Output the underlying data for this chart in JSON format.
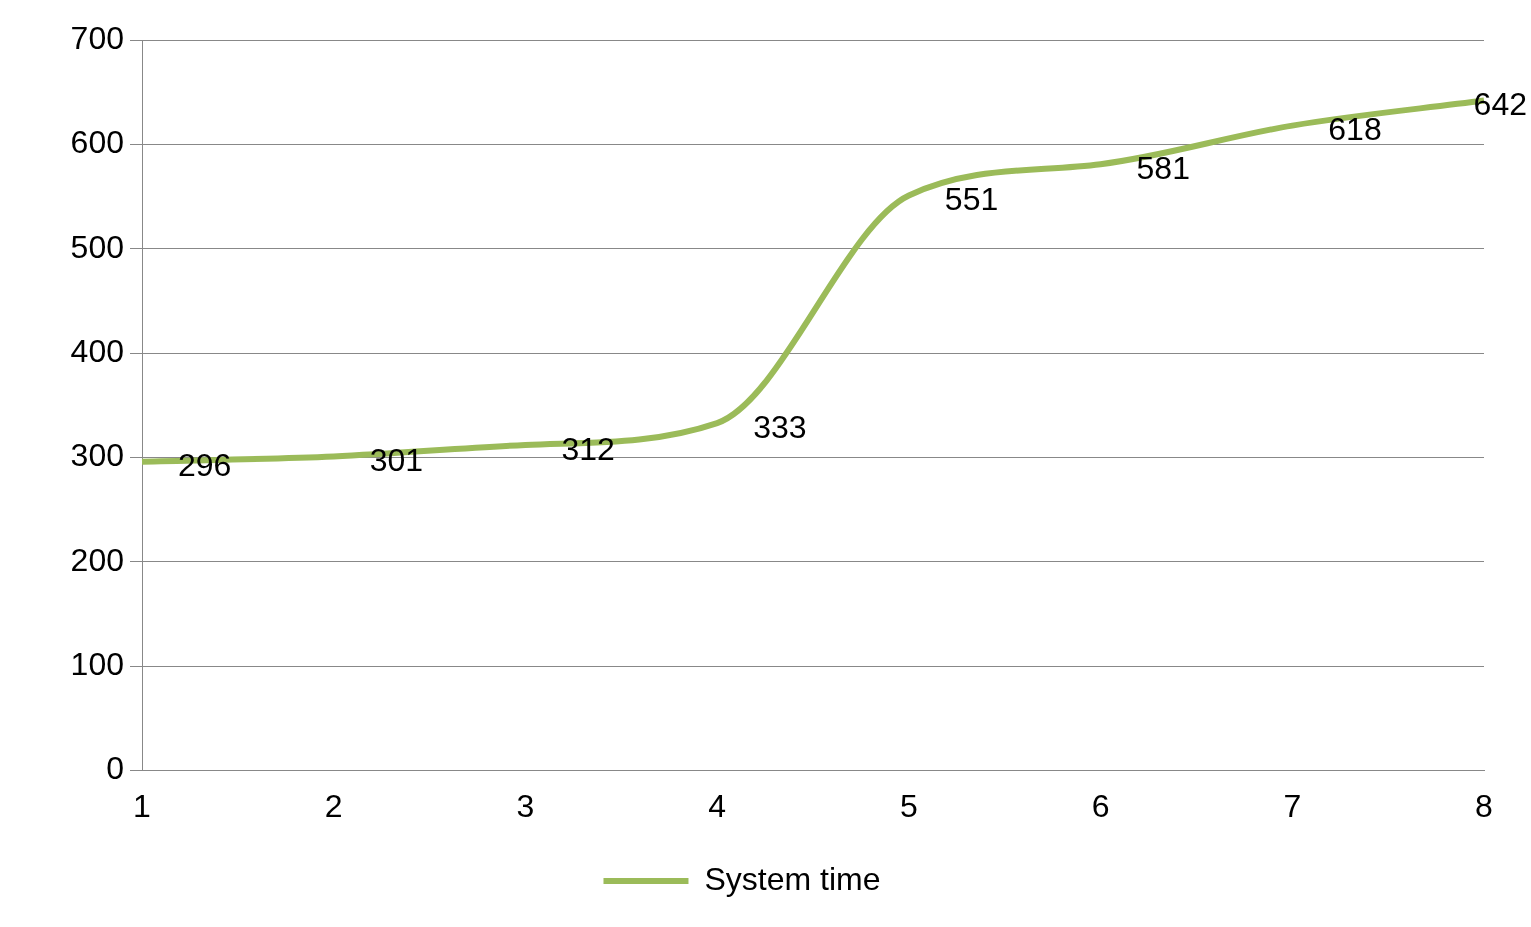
{
  "chart_data": {
    "type": "line",
    "categories": [
      "1",
      "2",
      "3",
      "4",
      "5",
      "6",
      "7",
      "8"
    ],
    "series": [
      {
        "name": "System time",
        "color": "#9bbb59",
        "values": [
          296,
          301,
          312,
          333,
          551,
          581,
          618,
          642
        ]
      }
    ],
    "ylim": [
      0,
      700
    ],
    "yticks": [
      0,
      100,
      200,
      300,
      400,
      500,
      600,
      700
    ],
    "grid": "y",
    "legend": "bottom",
    "marker": "none",
    "line_style": "solid",
    "data_labels": true
  }
}
